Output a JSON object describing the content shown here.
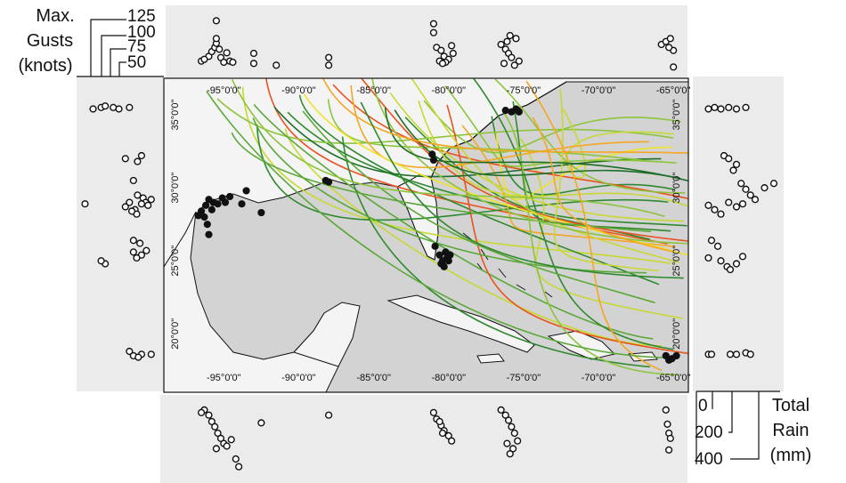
{
  "chart_data": {
    "type": "scatter",
    "map": {
      "lon_range": [
        -99,
        -64
      ],
      "lat_range": [
        16,
        37.5
      ],
      "lon_ticks": [
        -95,
        -90,
        -85,
        -80,
        -75,
        -70,
        -65
      ],
      "lat_ticks": [
        35,
        30,
        25,
        20
      ],
      "lon_tick_labels": [
        "-95°0'0\"",
        "-90°0'0\"",
        "-85°0'0\"",
        "-80°0'0\"",
        "-75°0'0\"",
        "-70°0'0\"",
        "-65°0'0\""
      ],
      "lat_tick_labels": [
        "35°0'0\"",
        "30°0'0\"",
        "25°0'0\"",
        "20°0'0\""
      ]
    },
    "gust_scale": {
      "label_lines": [
        "Max.",
        "Gusts",
        "(knots)"
      ],
      "ticks": [
        125,
        100,
        75,
        50
      ]
    },
    "rain_scale": {
      "label_lines": [
        "Total",
        "Rain",
        "(mm)"
      ],
      "ticks": [
        0,
        200,
        400
      ]
    },
    "track_colors": [
      "#1e6e28",
      "#2f8a2f",
      "#5aa838",
      "#8cc43c",
      "#c8d832",
      "#f0e22a",
      "#f5a623",
      "#e8531f"
    ],
    "landfall_points": [
      {
        "lon": -96.5,
        "lat": 28.4
      },
      {
        "lon": -96.2,
        "lat": 28.8
      },
      {
        "lon": -96.0,
        "lat": 29.2
      },
      {
        "lon": -95.7,
        "lat": 29.0
      },
      {
        "lon": -95.4,
        "lat": 28.9
      },
      {
        "lon": -95.1,
        "lat": 29.3
      },
      {
        "lon": -94.9,
        "lat": 29.0
      },
      {
        "lon": -94.6,
        "lat": 29.4
      },
      {
        "lon": -96.7,
        "lat": 28.1
      },
      {
        "lon": -96.3,
        "lat": 28.0
      },
      {
        "lon": -95.8,
        "lat": 28.5
      },
      {
        "lon": -96.1,
        "lat": 27.5
      },
      {
        "lon": -93.8,
        "lat": 28.9
      },
      {
        "lon": -93.5,
        "lat": 29.8
      },
      {
        "lon": -92.5,
        "lat": 28.3
      },
      {
        "lon": -96.0,
        "lat": 26.8
      },
      {
        "lon": -88.2,
        "lat": 30.5
      },
      {
        "lon": -88.0,
        "lat": 30.4
      },
      {
        "lon": -81.1,
        "lat": 32.3
      },
      {
        "lon": -81.0,
        "lat": 31.9
      },
      {
        "lon": -80.6,
        "lat": 25.4
      },
      {
        "lon": -80.4,
        "lat": 25.0
      },
      {
        "lon": -80.2,
        "lat": 25.6
      },
      {
        "lon": -80.1,
        "lat": 25.2
      },
      {
        "lon": -80.5,
        "lat": 24.8
      },
      {
        "lon": -79.9,
        "lat": 25.4
      },
      {
        "lon": -80.9,
        "lat": 26.0
      },
      {
        "lon": -80.3,
        "lat": 24.6
      },
      {
        "lon": -80.0,
        "lat": 25.0
      },
      {
        "lon": -76.2,
        "lat": 35.3
      },
      {
        "lon": -75.8,
        "lat": 35.2
      },
      {
        "lon": -75.5,
        "lat": 35.4
      },
      {
        "lon": -75.3,
        "lat": 35.2
      },
      {
        "lon": -65.5,
        "lat": 18.5
      },
      {
        "lon": -65.1,
        "lat": 18.3
      },
      {
        "lon": -64.8,
        "lat": 18.5
      },
      {
        "lon": -65.3,
        "lat": 18.2
      }
    ],
    "gust_points_by_lon": [
      {
        "lon": -96.5,
        "gust": 52
      },
      {
        "lon": -96.0,
        "gust": 60
      },
      {
        "lon": -95.8,
        "gust": 68
      },
      {
        "lon": -95.6,
        "gust": 75
      },
      {
        "lon": -95.5,
        "gust": 82
      },
      {
        "lon": -95.5,
        "gust": 90
      },
      {
        "lon": -95.3,
        "gust": 72
      },
      {
        "lon": -95.2,
        "gust": 58
      },
      {
        "lon": -95.0,
        "gust": 50
      },
      {
        "lon": -94.8,
        "gust": 66
      },
      {
        "lon": -94.6,
        "gust": 52
      },
      {
        "lon": -95.5,
        "gust": 120
      },
      {
        "lon": -96.3,
        "gust": 55
      },
      {
        "lon": -94.4,
        "gust": 50
      },
      {
        "lon": -93.0,
        "gust": 65
      },
      {
        "lon": -93.0,
        "gust": 48
      },
      {
        "lon": -91.5,
        "gust": 45
      },
      {
        "lon": -88.0,
        "gust": 58
      },
      {
        "lon": -88.0,
        "gust": 45
      },
      {
        "lon": -81.0,
        "gust": 115
      },
      {
        "lon": -81.0,
        "gust": 100
      },
      {
        "lon": -80.8,
        "gust": 75
      },
      {
        "lon": -80.5,
        "gust": 70
      },
      {
        "lon": -80.3,
        "gust": 60
      },
      {
        "lon": -80.0,
        "gust": 55
      },
      {
        "lon": -80.2,
        "gust": 50
      },
      {
        "lon": -79.7,
        "gust": 65
      },
      {
        "lon": -80.6,
        "gust": 52
      },
      {
        "lon": -79.8,
        "gust": 78
      },
      {
        "lon": -80.4,
        "gust": 48
      },
      {
        "lon": -76.5,
        "gust": 80
      },
      {
        "lon": -76.2,
        "gust": 72
      },
      {
        "lon": -76.0,
        "gust": 65
      },
      {
        "lon": -75.8,
        "gust": 58
      },
      {
        "lon": -75.5,
        "gust": 90
      },
      {
        "lon": -75.3,
        "gust": 52
      },
      {
        "lon": -76.3,
        "gust": 48
      },
      {
        "lon": -75.6,
        "gust": 45
      },
      {
        "lon": -76.1,
        "gust": 85
      },
      {
        "lon": -75.9,
        "gust": 95
      },
      {
        "lon": -65.8,
        "gust": 80
      },
      {
        "lon": -65.5,
        "gust": 85
      },
      {
        "lon": -65.2,
        "gust": 90
      },
      {
        "lon": -65.0,
        "gust": 70
      },
      {
        "lon": -65.3,
        "gust": 75
      },
      {
        "lon": -65.0,
        "gust": 42
      }
    ],
    "rain_points_by_lon": [
      {
        "lon": -96.3,
        "rain": 20
      },
      {
        "lon": -96.0,
        "rain": 60
      },
      {
        "lon": -95.8,
        "rain": 110
      },
      {
        "lon": -95.6,
        "rain": 150
      },
      {
        "lon": -95.4,
        "rain": 200
      },
      {
        "lon": -95.2,
        "rain": 240
      },
      {
        "lon": -95.0,
        "rain": 280
      },
      {
        "lon": -94.8,
        "rain": 300
      },
      {
        "lon": -95.5,
        "rain": 320
      },
      {
        "lon": -94.5,
        "rain": 250
      },
      {
        "lon": -96.5,
        "rain": 40
      },
      {
        "lon": -94.2,
        "rain": 400
      },
      {
        "lon": -94.0,
        "rain": 460
      },
      {
        "lon": -92.5,
        "rain": 120
      },
      {
        "lon": -88.0,
        "rain": 60
      },
      {
        "lon": -81.0,
        "rain": 40
      },
      {
        "lon": -80.8,
        "rain": 90
      },
      {
        "lon": -80.5,
        "rain": 140
      },
      {
        "lon": -80.3,
        "rain": 180
      },
      {
        "lon": -80.0,
        "rain": 220
      },
      {
        "lon": -79.8,
        "rain": 260
      },
      {
        "lon": -80.4,
        "rain": 200
      },
      {
        "lon": -80.6,
        "rain": 110
      },
      {
        "lon": -76.5,
        "rain": 20
      },
      {
        "lon": -76.2,
        "rain": 60
      },
      {
        "lon": -76.0,
        "rain": 100
      },
      {
        "lon": -75.8,
        "rain": 150
      },
      {
        "lon": -75.6,
        "rain": 200
      },
      {
        "lon": -75.4,
        "rain": 260
      },
      {
        "lon": -75.7,
        "rain": 320
      },
      {
        "lon": -76.1,
        "rain": 280
      },
      {
        "lon": -75.9,
        "rain": 360
      },
      {
        "lon": -65.5,
        "rain": 20
      },
      {
        "lon": -65.4,
        "rain": 130
      },
      {
        "lon": -65.3,
        "rain": 200
      },
      {
        "lon": -65.2,
        "rain": 240
      },
      {
        "lon": -65.3,
        "rain": 330
      }
    ],
    "gust_points_by_lat": [
      {
        "lat": 35.5,
        "gust": 110
      },
      {
        "lat": 35.4,
        "gust": 120
      },
      {
        "lat": 35.5,
        "gust": 95
      },
      {
        "lat": 35.6,
        "gust": 105
      },
      {
        "lat": 35.4,
        "gust": 88
      },
      {
        "lat": 35.5,
        "gust": 75
      },
      {
        "lat": 32.2,
        "gust": 60
      },
      {
        "lat": 31.8,
        "gust": 65
      },
      {
        "lat": 32.0,
        "gust": 80
      },
      {
        "lat": 30.5,
        "gust": 70
      },
      {
        "lat": 29.5,
        "gust": 65
      },
      {
        "lat": 29.3,
        "gust": 58
      },
      {
        "lat": 29.0,
        "gust": 55
      },
      {
        "lat": 28.8,
        "gust": 52
      },
      {
        "lat": 29.0,
        "gust": 75
      },
      {
        "lat": 28.7,
        "gust": 80
      },
      {
        "lat": 28.5,
        "gust": 68
      },
      {
        "lat": 29.2,
        "gust": 48
      },
      {
        "lat": 28.9,
        "gust": 60
      },
      {
        "lat": 28.2,
        "gust": 66
      },
      {
        "lat": 28.4,
        "gust": 72
      },
      {
        "lat": 28.9,
        "gust": 130
      },
      {
        "lat": 26.4,
        "gust": 70
      },
      {
        "lat": 26.2,
        "gust": 62
      },
      {
        "lat": 25.6,
        "gust": 70
      },
      {
        "lat": 25.4,
        "gust": 60
      },
      {
        "lat": 25.2,
        "gust": 66
      },
      {
        "lat": 24.8,
        "gust": 105
      },
      {
        "lat": 25.0,
        "gust": 110
      },
      {
        "lat": 25.7,
        "gust": 54
      },
      {
        "lat": 18.8,
        "gust": 75
      },
      {
        "lat": 18.5,
        "gust": 70
      },
      {
        "lat": 18.6,
        "gust": 60
      },
      {
        "lat": 18.4,
        "gust": 64
      },
      {
        "lat": 18.6,
        "gust": 48
      }
    ],
    "rain_points_by_lat": [
      {
        "lat": 35.4,
        "rain": 20
      },
      {
        "lat": 35.5,
        "rain": 60
      },
      {
        "lat": 35.4,
        "rain": 100
      },
      {
        "lat": 35.5,
        "rain": 150
      },
      {
        "lat": 35.4,
        "rain": 200
      },
      {
        "lat": 35.5,
        "rain": 260
      },
      {
        "lat": 32.2,
        "rain": 120
      },
      {
        "lat": 32.0,
        "rain": 150
      },
      {
        "lat": 31.6,
        "rain": 200
      },
      {
        "lat": 31.2,
        "rain": 180
      },
      {
        "lat": 30.3,
        "rain": 230
      },
      {
        "lat": 29.9,
        "rain": 260
      },
      {
        "lat": 29.5,
        "rain": 290
      },
      {
        "lat": 29.2,
        "rain": 320
      },
      {
        "lat": 28.8,
        "rain": 20
      },
      {
        "lat": 28.5,
        "rain": 60
      },
      {
        "lat": 28.2,
        "rain": 100
      },
      {
        "lat": 29.0,
        "rain": 150
      },
      {
        "lat": 28.7,
        "rain": 200
      },
      {
        "lat": 28.9,
        "rain": 240
      },
      {
        "lat": 30.0,
        "rain": 380
      },
      {
        "lat": 30.3,
        "rain": 440
      },
      {
        "lat": 26.4,
        "rain": 40
      },
      {
        "lat": 26.0,
        "rain": 80
      },
      {
        "lat": 25.2,
        "rain": 20
      },
      {
        "lat": 25.0,
        "rain": 100
      },
      {
        "lat": 24.6,
        "rain": 140
      },
      {
        "lat": 24.4,
        "rain": 160
      },
      {
        "lat": 24.8,
        "rain": 200
      },
      {
        "lat": 25.3,
        "rain": 240
      },
      {
        "lat": 18.6,
        "rain": 20
      },
      {
        "lat": 18.6,
        "rain": 40
      },
      {
        "lat": 18.6,
        "rain": 160
      },
      {
        "lat": 18.6,
        "rain": 200
      },
      {
        "lat": 18.7,
        "rain": 260
      },
      {
        "lat": 18.6,
        "rain": 290
      }
    ]
  }
}
